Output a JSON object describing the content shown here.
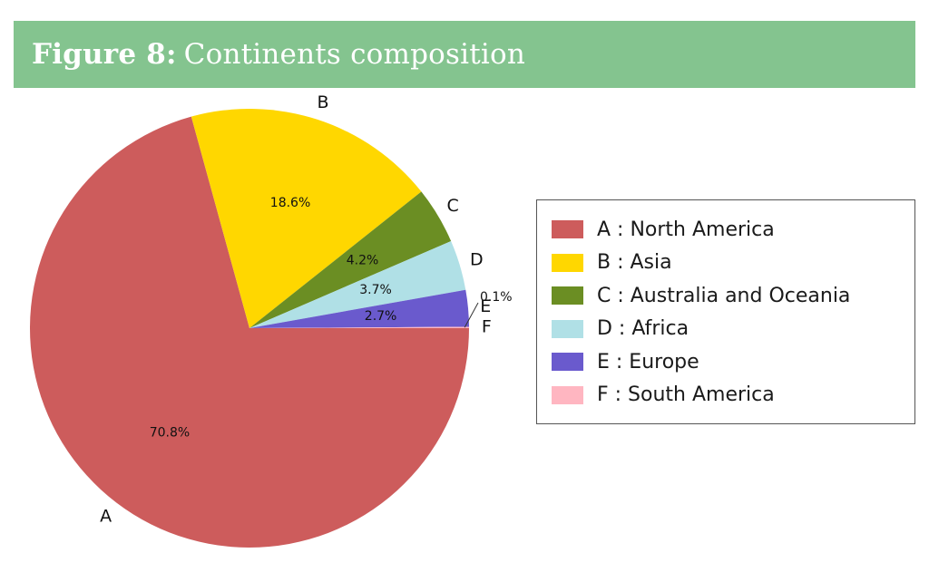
{
  "header": {
    "figure_label": "Figure 8:",
    "title": "Continents composition"
  },
  "chart_data": {
    "type": "pie",
    "categories": [
      "A",
      "B",
      "C",
      "D",
      "E",
      "F"
    ],
    "values": [
      70.8,
      18.6,
      4.2,
      3.7,
      2.7,
      0.1
    ],
    "value_labels": [
      "70.8%",
      "18.6%",
      "4.2%",
      "3.7%",
      "2.7%",
      "0.1%"
    ],
    "colors": [
      "#cd5c5c",
      "#ffd700",
      "#6b8e23",
      "#b0e0e6",
      "#6a5acd",
      "#ffb6c1"
    ],
    "start_angle_deg": 0,
    "direction": "clockwise",
    "legend_position": "right",
    "legend": [
      "A : North America",
      "B : Asia",
      "C : Australia and Oceania",
      "D : Africa",
      "E : Europe",
      "F : South America"
    ]
  }
}
